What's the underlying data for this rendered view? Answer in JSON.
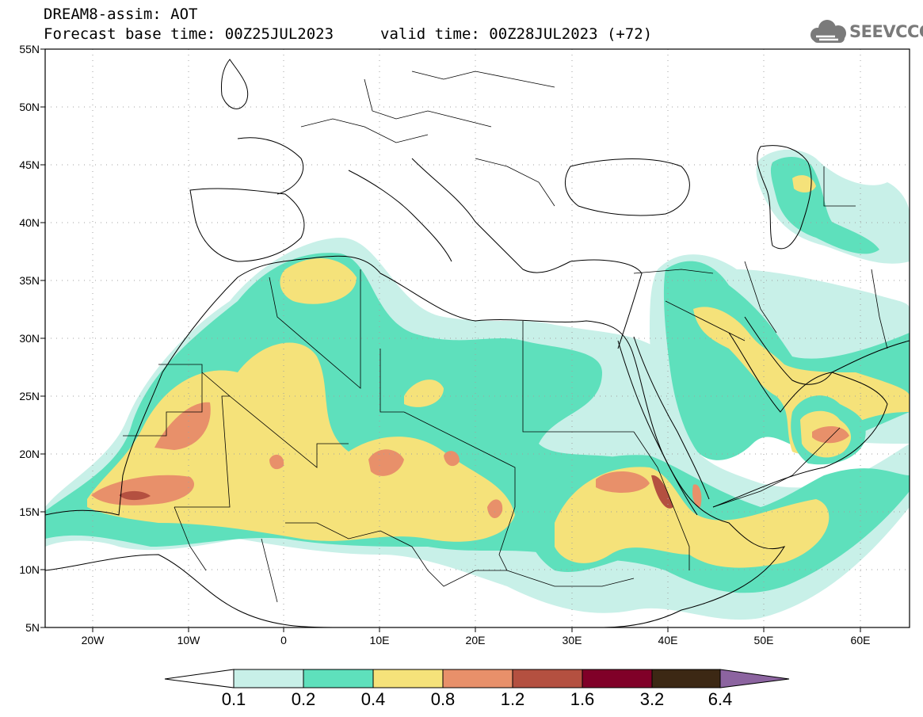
{
  "title": {
    "line1": "DREAM8-assim: AOT",
    "base_time": "Forecast base time: 00Z25JUL2023",
    "valid_time": "valid time: 00Z28JUL2023 (+72)"
  },
  "logo": {
    "text": "SEEVCCC",
    "icon": "cloud-icon"
  },
  "map": {
    "lat_labels": [
      "55N",
      "50N",
      "45N",
      "40N",
      "35N",
      "30N",
      "25N",
      "20N",
      "15N",
      "10N",
      "5N"
    ],
    "lon_labels": [
      "20W",
      "10W",
      "0",
      "10E",
      "20E",
      "30E",
      "40E",
      "50E",
      "60E"
    ],
    "grid": "dotted"
  },
  "colorbar": {
    "labels": [
      "0.1",
      "0.2",
      "0.4",
      "0.8",
      "1.2",
      "1.6",
      "3.2",
      "6.4"
    ],
    "colors": [
      "#c8f0e8",
      "#5ee0bc",
      "#f5e27a",
      "#e8906a",
      "#b45040",
      "#800028",
      "#3c2814",
      "#8c64a0"
    ],
    "low_end_color": "#ffffff"
  }
}
